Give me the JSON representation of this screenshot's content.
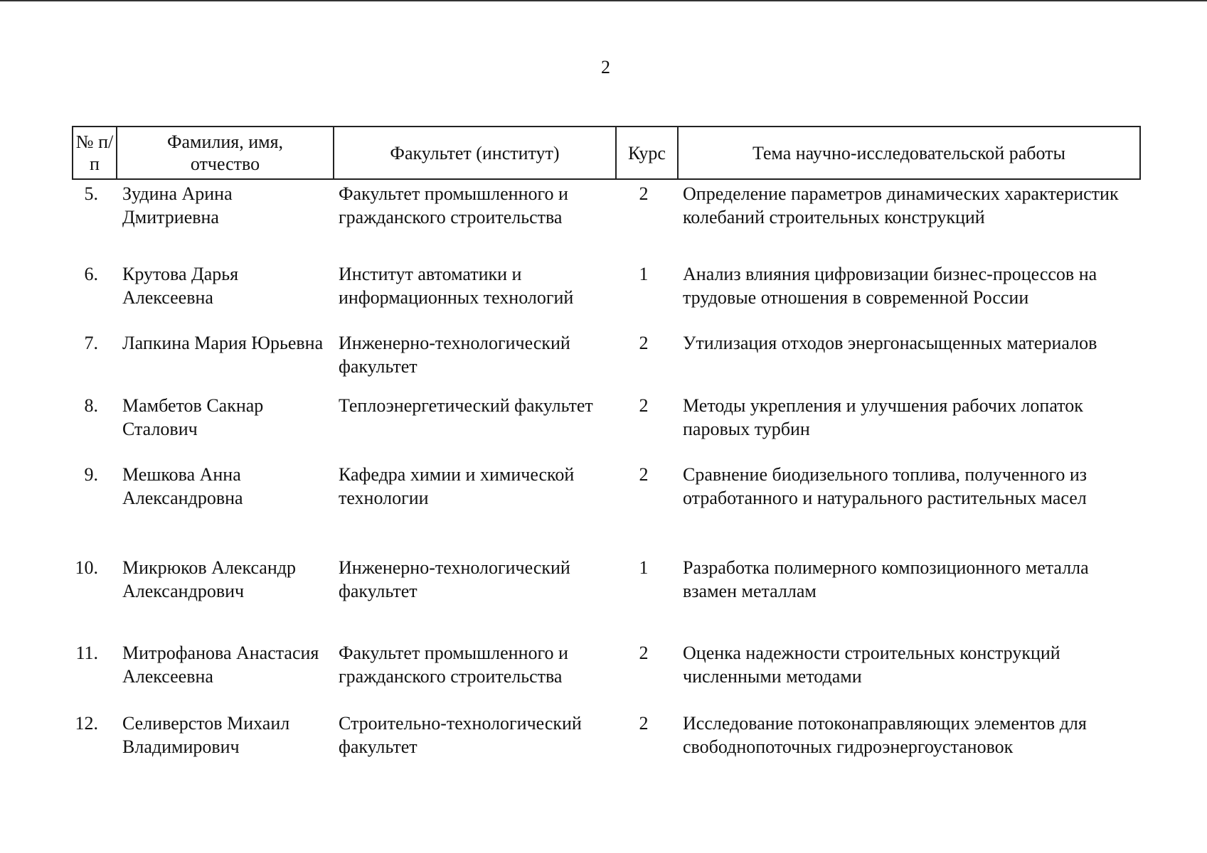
{
  "page_number": "2",
  "table": {
    "headers": {
      "num": "№ п/п",
      "name": "Фамилия, имя, отчество",
      "faculty": "Факультет (институт)",
      "course": "Курс",
      "topic": "Тема научно-исследовательской работы"
    },
    "rows": [
      {
        "num": "5.",
        "name": "Зудина Арина Дмитриевна",
        "faculty": "Факультет промышленного и гражданского строительства",
        "course": "2",
        "topic": "Определение параметров динамических характеристик колебаний строительных конструкций"
      },
      {
        "num": "6.",
        "name": "Крутова Дарья Алексеевна",
        "faculty": "Институт автоматики и информационных технологий",
        "course": "1",
        "topic": "Анализ влияния цифровизации бизнес-процессов на трудовые отношения в современной России"
      },
      {
        "num": "7.",
        "name": "Лапкина Мария Юрьевна",
        "faculty": "Инженерно-технологический факультет",
        "course": "2",
        "topic": "Утилизация отходов энергонасыщенных материалов"
      },
      {
        "num": "8.",
        "name": "Мамбетов Сакнар Сталович",
        "faculty": "Теплоэнергетический факультет",
        "course": "2",
        "topic": "Методы укрепления и улучшения рабочих лопаток паровых турбин"
      },
      {
        "num": "9.",
        "name": "Мешкова Анна Александровна",
        "faculty": "Кафедра химии и химической технологии",
        "course": "2",
        "topic": "Сравнение биодизельного топлива, полученного из отработанного и натурального растительных масел"
      },
      {
        "num": "10.",
        "name": "Микрюков Александр Александрович",
        "faculty": "Инженерно-технологический факультет",
        "course": "1",
        "topic": "Разработка полимерного композиционного металла взамен металлам"
      },
      {
        "num": "11.",
        "name": "Митрофанова Анастасия Алексеевна",
        "faculty": "Факультет промышленного и гражданского строительства",
        "course": "2",
        "topic": "Оценка надежности строительных конструкций численными методами"
      },
      {
        "num": "12.",
        "name": "Селиверстов Михаил Владимирович",
        "faculty": "Строительно-технологический факультет",
        "course": "2",
        "topic": "Исследование потоконаправляющих элементов для свободнопоточных гидроэнергоустановок"
      }
    ]
  }
}
